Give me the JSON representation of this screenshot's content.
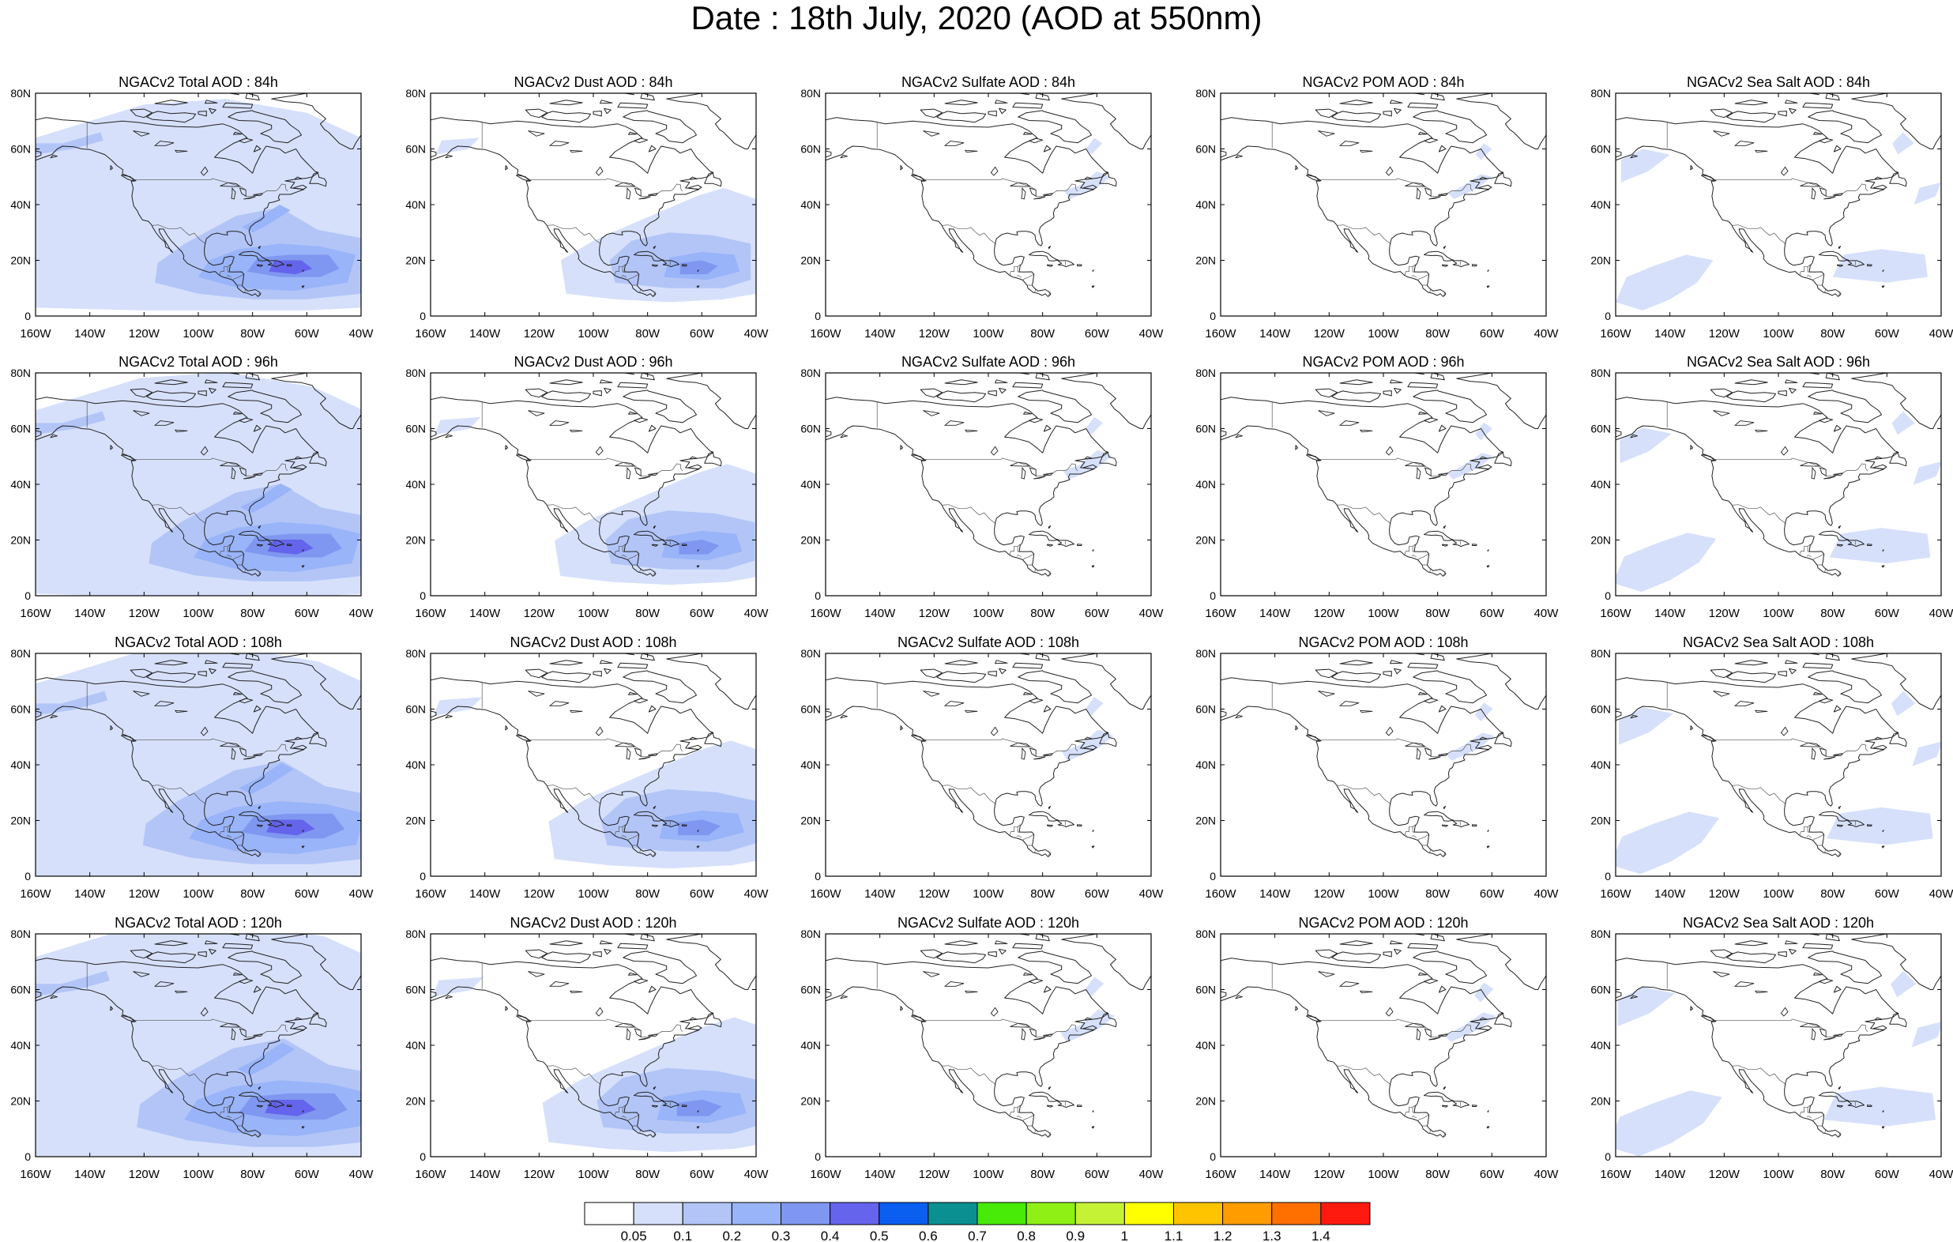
{
  "page": {
    "title": "Date : 18th July, 2020 (AOD at 550nm)"
  },
  "rows": [
    "84h",
    "96h",
    "108h",
    "120h"
  ],
  "columns": [
    {
      "key": "total",
      "prefix": "NGACv2 Total AOD : "
    },
    {
      "key": "dust",
      "prefix": "NGACv2 Dust AOD : "
    },
    {
      "key": "sulfate",
      "prefix": "NGACv2 Sulfate AOD : "
    },
    {
      "key": "pom",
      "prefix": "NGACv2 POM AOD : "
    },
    {
      "key": "seasalt",
      "prefix": "NGACv2 Sea Salt AOD : ",
      "alt_prefix_rows": {
        "2": "NGACv2 Sea Salt  AOD : ",
        "3": "NGACv2 Sea Salt  AOD : "
      }
    }
  ],
  "axes": {
    "x_ticks": [
      "160W",
      "140W",
      "120W",
      "100W",
      "80W",
      "60W",
      "40W"
    ],
    "y_ticks": [
      "0",
      "20N",
      "40N",
      "60N",
      "80N"
    ],
    "lon_range": [
      -160,
      -40
    ],
    "lat_range": [
      0,
      80
    ]
  },
  "colorbar": {
    "labels": [
      "0.05",
      "0.1",
      "0.2",
      "0.3",
      "0.4",
      "0.5",
      "0.6",
      "0.7",
      "0.8",
      "0.9",
      "1",
      "1.1",
      "1.2",
      "1.3",
      "1.4"
    ],
    "colors": [
      "#ffffff",
      "#d6e0fb",
      "#b3c5f7",
      "#99b4f8",
      "#7f97f0",
      "#6464ec",
      "#0a5ef0",
      "#0a9090",
      "#48ea08",
      "#8ef014",
      "#c6f236",
      "#ffff00",
      "#ffc400",
      "#ff9c00",
      "#ff7000",
      "#ff1a10"
    ]
  },
  "aerosol_colors": {
    "level1": "#d6e0fb",
    "level2": "#b3c5f7",
    "level3": "#99b4f8",
    "level4": "#7f97f0",
    "level5": "#6464ec"
  }
}
